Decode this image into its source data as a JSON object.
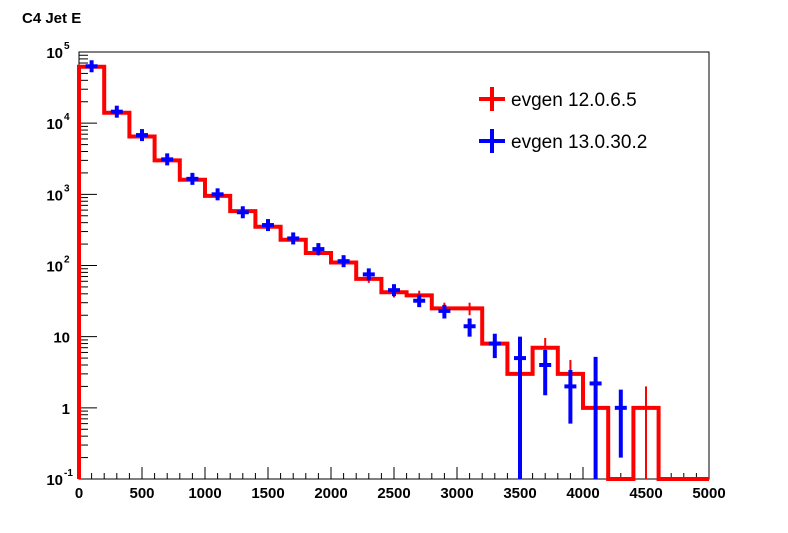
{
  "chart_data": {
    "type": "histogram",
    "title": "C4 Jet E",
    "xlabel": "",
    "ylabel": "",
    "xlim": [
      0,
      5000
    ],
    "ylim": [
      0.1,
      100000
    ],
    "yscale": "log",
    "grid": false,
    "legend_position": "top-right",
    "bin_edges": [
      0,
      200,
      400,
      600,
      800,
      1000,
      1200,
      1400,
      1600,
      1800,
      2000,
      2200,
      2400,
      2600,
      2800,
      3000,
      3200,
      3400,
      3600,
      3800,
      4000,
      4200,
      4400,
      4600,
      4800,
      5000
    ],
    "series": [
      {
        "name": "evgen 12.0.6.5",
        "color": "#ff0000",
        "style": "step",
        "values": [
          62000,
          14000,
          6500,
          3000,
          1600,
          950,
          580,
          350,
          230,
          150,
          110,
          65,
          42,
          38,
          25,
          25,
          8,
          3,
          7,
          3,
          1,
          0,
          1,
          0,
          0
        ],
        "errors": [
          250,
          120,
          80,
          55,
          40,
          31,
          24,
          19,
          15,
          12,
          10,
          8,
          6.5,
          6.2,
          5,
          5,
          2.8,
          1.7,
          2.6,
          1.7,
          1,
          0,
          1,
          0,
          0
        ]
      },
      {
        "name": "evgen 13.0.30.2",
        "color": "#0000ff",
        "style": "errorbar",
        "values": [
          63000,
          14500,
          6800,
          3100,
          1650,
          1000,
          560,
          370,
          240,
          170,
          115,
          75,
          45,
          32,
          23,
          14,
          8,
          5,
          4,
          2,
          2.2,
          1,
          0,
          0,
          0
        ],
        "errors": [
          250,
          120,
          82,
          56,
          41,
          32,
          24,
          19,
          15.5,
          13,
          11,
          10,
          7,
          6,
          5,
          4,
          3,
          5,
          2.5,
          1.4,
          3,
          0.8,
          0,
          0,
          0
        ]
      }
    ],
    "x_ticks": [
      "0",
      "500",
      "1000",
      "1500",
      "2000",
      "2500",
      "3000",
      "3500",
      "4000",
      "4500",
      "5000"
    ],
    "y_ticks": [
      {
        "value": 0.1,
        "mantissa": "10",
        "exp": "-1"
      },
      {
        "value": 1,
        "mantissa": "1",
        "exp": ""
      },
      {
        "value": 10,
        "mantissa": "10",
        "exp": ""
      },
      {
        "value": 100,
        "mantissa": "10",
        "exp": "2"
      },
      {
        "value": 1000,
        "mantissa": "10",
        "exp": "3"
      },
      {
        "value": 10000,
        "mantissa": "10",
        "exp": "4"
      },
      {
        "value": 100000,
        "mantissa": "10",
        "exp": "5"
      }
    ]
  }
}
